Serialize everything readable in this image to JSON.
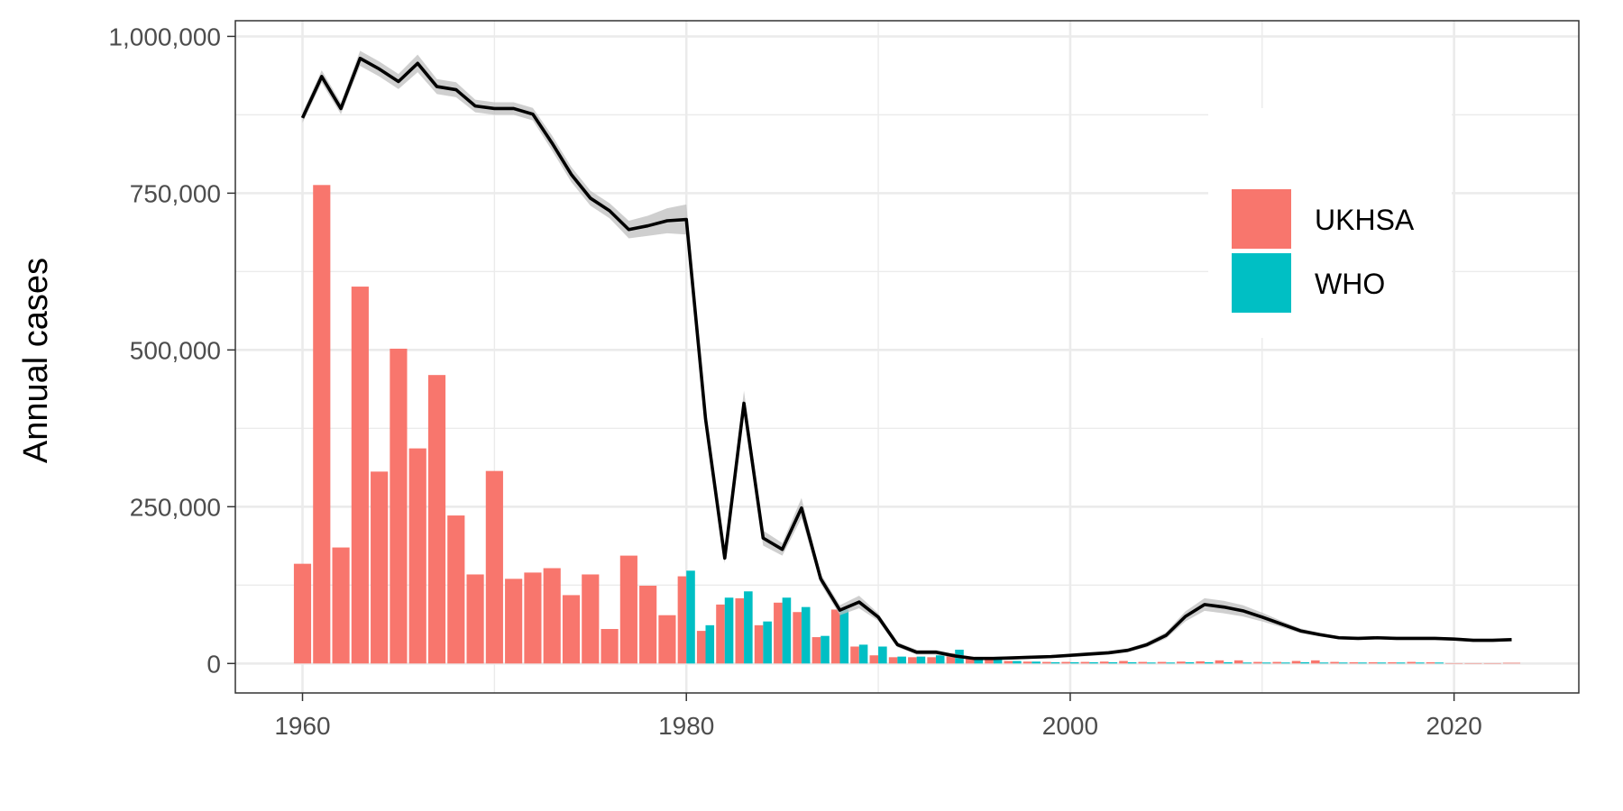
{
  "chart_data": {
    "type": "bar",
    "title": "",
    "xlabel": "",
    "ylabel": "Annual cases",
    "xlim": [
      1956.5,
      2026.5
    ],
    "ylim": [
      -47000,
      1025000
    ],
    "x_ticks": [
      1960,
      1980,
      2000,
      2020
    ],
    "x_tick_labels": [
      "1960",
      "1980",
      "2000",
      "2020"
    ],
    "y_ticks": [
      0,
      250000,
      500000,
      750000,
      1000000
    ],
    "y_tick_labels": [
      "0",
      "250,000",
      "500,000",
      "750,000",
      "1,000,000"
    ],
    "grid": true,
    "legend_position": "right",
    "colors": {
      "UKHSA": "#F8766D",
      "WHO": "#00BFC4",
      "line": "#000000",
      "ribbon": "#BFBFBF"
    },
    "series": [
      {
        "name": "UKHSA",
        "type": "bar",
        "x": [
          1960,
          1961,
          1962,
          1963,
          1964,
          1965,
          1966,
          1967,
          1968,
          1969,
          1970,
          1971,
          1972,
          1973,
          1974,
          1975,
          1976,
          1977,
          1978,
          1979,
          1980,
          1981,
          1982,
          1983,
          1984,
          1985,
          1986,
          1987,
          1988,
          1989,
          1990,
          1991,
          1992,
          1993,
          1994,
          1995,
          1996,
          1997,
          1998,
          1999,
          2000,
          2001,
          2002,
          2003,
          2004,
          2005,
          2006,
          2007,
          2008,
          2009,
          2010,
          2011,
          2012,
          2013,
          2014,
          2015,
          2016,
          2017,
          2018,
          2019,
          2020,
          2021,
          2022,
          2023
        ],
        "values": [
          159000,
          763000,
          185000,
          601000,
          306000,
          502000,
          343000,
          460000,
          236000,
          142000,
          307000,
          135000,
          145000,
          152000,
          109000,
          142000,
          55000,
          172000,
          124000,
          77000,
          139000,
          52000,
          94000,
          104000,
          61000,
          97000,
          82000,
          42000,
          86000,
          27000,
          13000,
          10000,
          10000,
          10000,
          16000,
          7000,
          6000,
          4000,
          3000,
          2500,
          2500,
          2500,
          3000,
          4000,
          2500,
          2500,
          3000,
          3500,
          5000,
          5000,
          2500,
          2500,
          4000,
          5000,
          2500,
          2000,
          2000,
          2000,
          2500,
          2000,
          500,
          500,
          500,
          1000
        ]
      },
      {
        "name": "WHO",
        "type": "bar",
        "x": [
          1980,
          1981,
          1982,
          1983,
          1984,
          1985,
          1986,
          1987,
          1988,
          1989,
          1990,
          1991,
          1992,
          1993,
          1994,
          1995,
          1996,
          1997,
          1998,
          1999,
          2000,
          2001,
          2002,
          2003,
          2004,
          2005,
          2006,
          2007,
          2008,
          2009,
          2010,
          2011,
          2012,
          2013,
          2014,
          2015,
          2016,
          2017,
          2018,
          2019
        ],
        "values": [
          148000,
          61000,
          105000,
          115000,
          67000,
          105000,
          90000,
          44000,
          86000,
          30000,
          27000,
          11000,
          11000,
          13000,
          22000,
          8000,
          7000,
          4000,
          3000,
          2000,
          2000,
          2000,
          2000,
          2000,
          1500,
          1500,
          2000,
          2000,
          2000,
          1500,
          1500,
          1500,
          2000,
          1500,
          1500,
          1500,
          1500,
          1500,
          1500,
          1500
        ]
      },
      {
        "name": "",
        "type": "line",
        "x": [
          1960,
          1961,
          1962,
          1963,
          1964,
          1965,
          1966,
          1967,
          1968,
          1969,
          1970,
          1971,
          1972,
          1973,
          1974,
          1975,
          1976,
          1977,
          1978,
          1979,
          1980,
          1981,
          1982,
          1983,
          1984,
          1985,
          1986,
          1987,
          1988,
          1989,
          1990,
          1991,
          1992,
          1993,
          1994,
          1995,
          1996,
          1997,
          1998,
          1999,
          2000,
          2001,
          2002,
          2003,
          2004,
          2005,
          2006,
          2007,
          2008,
          2009,
          2010,
          2011,
          2012,
          2013,
          2014,
          2015,
          2016,
          2017,
          2018,
          2019,
          2020,
          2021,
          2022,
          2023
        ],
        "values": [
          870000,
          936000,
          885000,
          965000,
          948000,
          928000,
          957000,
          920000,
          915000,
          889000,
          885000,
          885000,
          876000,
          830000,
          780000,
          742000,
          722000,
          692000,
          698000,
          706000,
          708000,
          390000,
          168000,
          415000,
          200000,
          182000,
          248000,
          135000,
          85000,
          98000,
          74000,
          30000,
          18000,
          18000,
          12000,
          8000,
          8000,
          9000,
          10000,
          11000,
          13000,
          15000,
          17000,
          21000,
          30000,
          45000,
          75000,
          94000,
          90000,
          84000,
          74000,
          63000,
          52000,
          46000,
          41000,
          40000,
          41000,
          40000,
          40000,
          40000,
          39000,
          37000,
          37000,
          38000
        ],
        "band_width": [
          8000,
          10000,
          9000,
          12000,
          12000,
          12000,
          14000,
          12000,
          12000,
          10000,
          10000,
          10000,
          10000,
          12000,
          12000,
          12000,
          12000,
          14000,
          16000,
          20000,
          24000,
          10000,
          8000,
          20000,
          12000,
          10000,
          16000,
          8000,
          8000,
          10000,
          6000,
          4000,
          4000,
          4000,
          3000,
          2500,
          2500,
          2500,
          2500,
          2500,
          3000,
          3000,
          3000,
          3000,
          4000,
          5000,
          8000,
          10000,
          10000,
          9000,
          7000,
          5000,
          4000,
          3000,
          2500,
          2500,
          2500,
          2500,
          2500,
          2500,
          2500,
          2500,
          2500,
          2500
        ]
      }
    ]
  }
}
